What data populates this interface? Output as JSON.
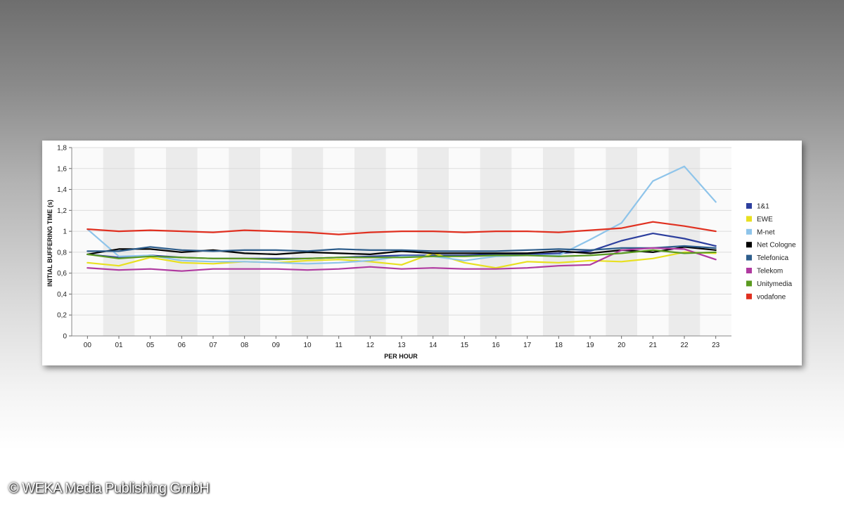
{
  "copyright": "© WEKA Media Publishing GmbH",
  "chart_data": {
    "type": "line",
    "title": "",
    "xlabel": "PER HOUR",
    "ylabel": "INITIAL BUFFERING TIME (s)",
    "ylim": [
      0,
      1.8
    ],
    "yticks": [
      "0",
      "0,2",
      "0,4",
      "0,6",
      "0,8",
      "1",
      "1,2",
      "1,4",
      "1,6",
      "1,8"
    ],
    "grid": true,
    "legend_position": "right",
    "categories": [
      "00",
      "01",
      "05",
      "06",
      "07",
      "08",
      "09",
      "10",
      "11",
      "12",
      "13",
      "14",
      "15",
      "16",
      "17",
      "18",
      "19",
      "20",
      "21",
      "22",
      "23"
    ],
    "series": [
      {
        "name": "1&1",
        "color": "#2d3f9e",
        "values": [
          0.78,
          0.75,
          0.77,
          0.75,
          0.74,
          0.74,
          0.74,
          0.74,
          0.75,
          0.76,
          0.77,
          0.77,
          0.77,
          0.78,
          0.78,
          0.79,
          0.81,
          0.91,
          0.98,
          0.93,
          0.86
        ]
      },
      {
        "name": "EWE",
        "color": "#e8e020",
        "values": [
          0.7,
          0.67,
          0.75,
          0.7,
          0.69,
          0.71,
          0.7,
          0.72,
          0.73,
          0.71,
          0.68,
          0.79,
          0.7,
          0.65,
          0.71,
          0.7,
          0.72,
          0.71,
          0.74,
          0.8,
          0.79
        ]
      },
      {
        "name": "M-net",
        "color": "#8ec4ea",
        "values": [
          1.02,
          0.76,
          0.77,
          0.72,
          0.71,
          0.71,
          0.7,
          0.69,
          0.7,
          0.72,
          0.76,
          0.76,
          0.72,
          0.76,
          0.77,
          0.77,
          0.92,
          1.08,
          1.48,
          1.62,
          1.28
        ]
      },
      {
        "name": "Net Cologne",
        "color": "#000000",
        "values": [
          0.78,
          0.83,
          0.83,
          0.8,
          0.82,
          0.79,
          0.78,
          0.8,
          0.79,
          0.78,
          0.81,
          0.79,
          0.79,
          0.79,
          0.79,
          0.81,
          0.79,
          0.82,
          0.8,
          0.85,
          0.82
        ]
      },
      {
        "name": "Telefonica",
        "color": "#2e5e8c",
        "values": [
          0.81,
          0.81,
          0.85,
          0.82,
          0.81,
          0.82,
          0.82,
          0.81,
          0.83,
          0.82,
          0.82,
          0.81,
          0.81,
          0.81,
          0.82,
          0.83,
          0.82,
          0.84,
          0.84,
          0.86,
          0.84
        ]
      },
      {
        "name": "Telekom",
        "color": "#b03aa0",
        "values": [
          0.65,
          0.63,
          0.64,
          0.62,
          0.64,
          0.64,
          0.64,
          0.63,
          0.64,
          0.66,
          0.64,
          0.65,
          0.64,
          0.64,
          0.65,
          0.67,
          0.68,
          0.82,
          0.84,
          0.83,
          0.73
        ]
      },
      {
        "name": "Unitymedia",
        "color": "#5a9a20",
        "values": [
          0.78,
          0.74,
          0.76,
          0.75,
          0.74,
          0.74,
          0.73,
          0.74,
          0.75,
          0.75,
          0.75,
          0.76,
          0.76,
          0.77,
          0.77,
          0.76,
          0.77,
          0.79,
          0.82,
          0.79,
          0.8
        ]
      },
      {
        "name": "vodafone",
        "color": "#e03020",
        "values": [
          1.02,
          1.0,
          1.01,
          1.0,
          0.99,
          1.01,
          1.0,
          0.99,
          0.97,
          0.99,
          1.0,
          1.0,
          0.99,
          1.0,
          1.0,
          0.99,
          1.01,
          1.03,
          1.09,
          1.05,
          1.0
        ]
      }
    ]
  }
}
